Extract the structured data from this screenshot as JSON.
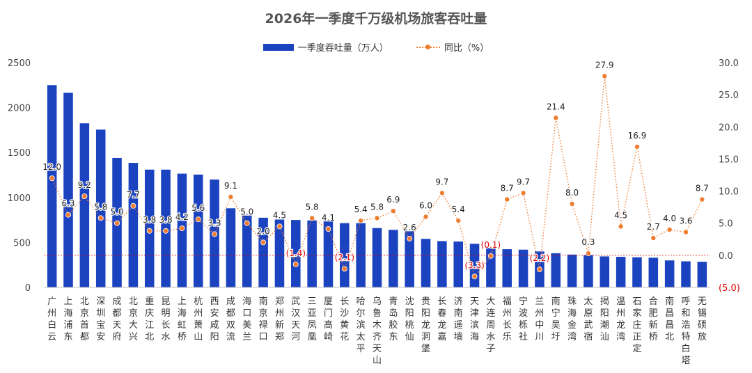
{
  "chart_data": {
    "type": "bar+line",
    "title": "2026年一季度千万级机场旅客吞吐量",
    "legend": {
      "bar_label": "一季度吞吐量（万人）",
      "line_label": "同比（%）",
      "placement": "top-center"
    },
    "categories": [
      "广州白云",
      "上海浦东",
      "北京首都",
      "深圳宝安",
      "成都天府",
      "北京大兴",
      "重庆江北",
      "昆明长水",
      "上海虹桥",
      "杭州萧山",
      "西安咸阳",
      "成都双流",
      "海口美兰",
      "南京禄口",
      "郑州新郑",
      "武汉天河",
      "三亚凤凰",
      "厦门高崎",
      "长沙黄花",
      "哈尔滨太平",
      "乌鲁木齐天山",
      "青岛胶东",
      "沈阳桃仙",
      "贵阳龙洞堡",
      "长春龙嘉",
      "济南遥墙",
      "天津滨海",
      "大连周水子",
      "福州长乐",
      "宁波栎社",
      "兰州中川",
      "南宁吴圩",
      "珠海金湾",
      "太原武宿",
      "揭阳潮汕",
      "温州龙湾",
      "石家庄正定",
      "合肥新桥",
      "南昌昌北",
      "呼和浩特白塔",
      "无锡硕放"
    ],
    "series": [
      {
        "name": "一季度吞吐量（万人）",
        "axis": "left",
        "values": [
          2250,
          2165,
          1825,
          1755,
          1440,
          1385,
          1310,
          1310,
          1265,
          1255,
          1200,
          880,
          800,
          775,
          755,
          750,
          745,
          740,
          715,
          715,
          660,
          640,
          625,
          540,
          515,
          510,
          485,
          440,
          425,
          420,
          400,
          380,
          365,
          360,
          345,
          340,
          335,
          330,
          300,
          290,
          285
        ]
      },
      {
        "name": "同比（%）",
        "axis": "right",
        "values": [
          12.0,
          6.3,
          9.2,
          5.8,
          5.0,
          7.7,
          3.8,
          3.8,
          4.2,
          5.6,
          3.3,
          9.1,
          5.0,
          2.0,
          4.5,
          -1.4,
          5.8,
          4.1,
          -2.1,
          5.4,
          5.8,
          6.9,
          2.6,
          6.0,
          9.7,
          5.4,
          -3.3,
          -0.1,
          8.7,
          9.7,
          -2.2,
          21.4,
          8.0,
          0.3,
          27.9,
          4.5,
          16.9,
          2.7,
          4.0,
          3.6,
          8.7
        ],
        "labels": [
          "12.0",
          "6.3",
          "9.2",
          "5.8",
          "5.0",
          "7.7",
          "3.8",
          "3.8",
          "4.2",
          "5.6",
          "3.3",
          "9.1",
          "5.0",
          "2.0",
          "4.5",
          "(1.4)",
          "5.8",
          "4.1",
          "(2.1)",
          "5.4",
          "5.8",
          "6.9",
          "2.6",
          "6.0",
          "9.7",
          "5.4",
          "(3.3)",
          "(0.1)",
          "8.7",
          "9.7",
          "(2.2)",
          "21.4",
          "8.0",
          "0.3",
          "27.9",
          "4.5",
          "16.9",
          "2.7",
          "4.0",
          "3.6",
          "8.7"
        ]
      }
    ],
    "left_axis": {
      "min": 0,
      "max": 2500,
      "ticks": [
        "0",
        "500",
        "1000",
        "1500",
        "2000",
        "2500"
      ],
      "values": [
        0,
        500,
        1000,
        1500,
        2000,
        2500
      ]
    },
    "right_axis": {
      "min": -5,
      "max": 30,
      "ticks": [
        "(5.0)",
        "0.0",
        "5.0",
        "10.0",
        "15.0",
        "20.0",
        "25.0",
        "30.0"
      ],
      "values": [
        -5,
        0,
        5,
        10,
        15,
        20,
        25,
        30
      ]
    },
    "grid": false,
    "colors": {
      "bar": "#1b43c0",
      "line": "#ed7d31",
      "negative_label": "#e00000",
      "label": "#222222",
      "axis_text": "#444444"
    }
  }
}
